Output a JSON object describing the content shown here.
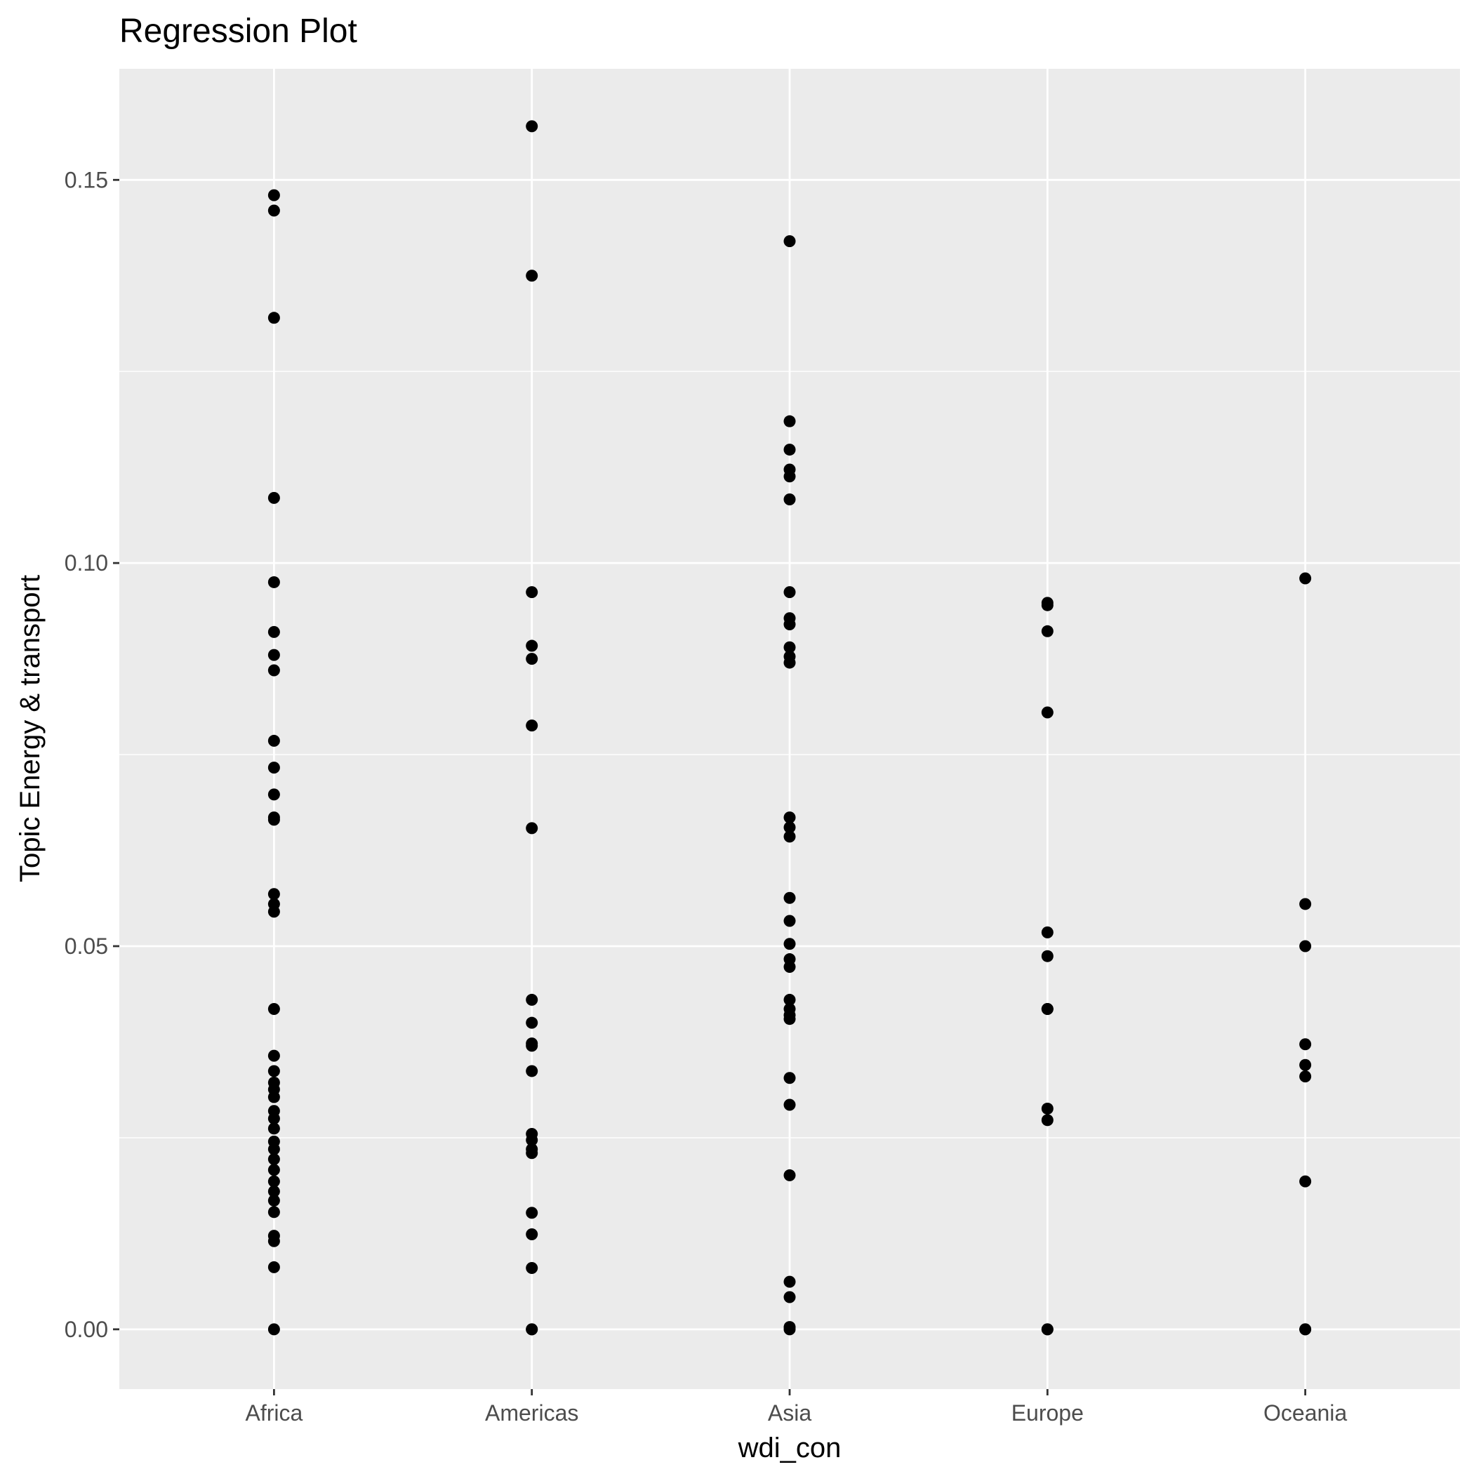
{
  "chart_data": {
    "type": "scatter",
    "title": "Regression Plot",
    "xlabel": "wdi_con",
    "ylabel": "Topic Energy & transport",
    "categories": [
      "Africa",
      "Americas",
      "Asia",
      "Europe",
      "Oceania"
    ],
    "y_ticks": [
      "0.00",
      "0.05",
      "0.10",
      "0.15"
    ],
    "y_tick_values": [
      0,
      0.05,
      0.1,
      0.15
    ],
    "ylim": [
      -0.0078,
      0.1645
    ],
    "grid": true,
    "points": {
      "Africa": [
        0.148,
        0.146,
        0.132,
        0.1085,
        0.0975,
        0.091,
        0.088,
        0.086,
        0.0768,
        0.0733,
        0.0698,
        0.0668,
        0.0665,
        0.0568,
        0.0555,
        0.0545,
        0.0418,
        0.0357,
        0.0337,
        0.0322,
        0.0313,
        0.0303,
        0.0285,
        0.0275,
        0.0262,
        0.0245,
        0.0235,
        0.0222,
        0.0208,
        0.0193,
        0.018,
        0.0168,
        0.0153,
        0.0122,
        0.0115,
        0.0081,
        0.0
      ],
      "Americas": [
        0.157,
        0.1375,
        0.0962,
        0.0892,
        0.0875,
        0.0788,
        0.0654,
        0.043,
        0.04,
        0.0373,
        0.037,
        0.0337,
        0.0255,
        0.0247,
        0.0235,
        0.023,
        0.0152,
        0.0124,
        0.008,
        0.0,
        0.0
      ],
      "Asia": [
        0.142,
        0.1185,
        0.1148,
        0.1122,
        0.1113,
        0.1083,
        0.0962,
        0.0928,
        0.092,
        0.089,
        0.0878,
        0.087,
        0.0668,
        0.0655,
        0.0643,
        0.0563,
        0.0533,
        0.0503,
        0.0483,
        0.0473,
        0.043,
        0.0418,
        0.041,
        0.0405,
        0.0328,
        0.0293,
        0.0201,
        0.0062,
        0.0042,
        0.0003,
        0.0
      ],
      "Europe": [
        0.0948,
        0.0945,
        0.0911,
        0.0805,
        0.0518,
        0.0487,
        0.0418,
        0.0418,
        0.0288,
        0.0273,
        0.0,
        0.0
      ],
      "Oceania": [
        0.098,
        0.0555,
        0.05,
        0.0372,
        0.0345,
        0.033,
        0.0193,
        0.0,
        0.0
      ]
    },
    "colors": {
      "panel": "#ebebeb",
      "grid_major": "#ffffff",
      "grid_minor": "#f7f7f7",
      "point": "#000000",
      "tick_label": "#4d4d4d",
      "text": "#000000"
    }
  }
}
